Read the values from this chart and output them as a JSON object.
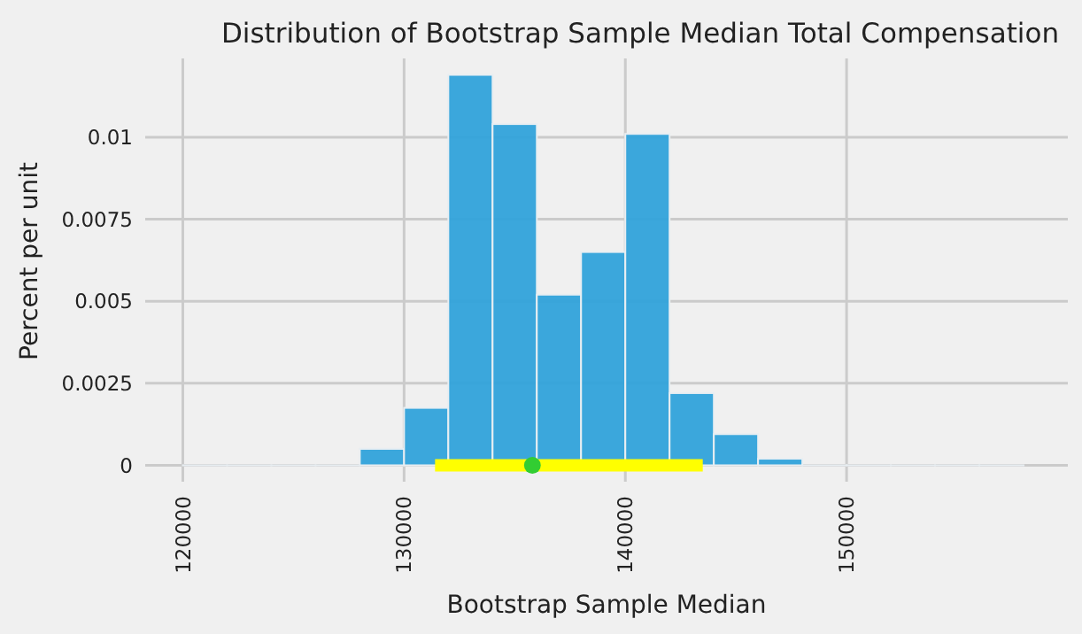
{
  "chart_data": {
    "type": "histogram",
    "title": "Distribution of Bootstrap Sample Median Total Compensation",
    "xlabel": "Bootstrap Sample Median",
    "ylabel": "Percent per unit",
    "bins": [
      120000,
      122000,
      124000,
      126000,
      128000,
      130000,
      132000,
      134000,
      136000,
      138000,
      140000,
      142000,
      144000,
      146000,
      148000,
      150000,
      152000,
      154000,
      156000,
      158000
    ],
    "values": [
      0,
      0,
      0,
      0,
      0.0005,
      0.00175,
      0.0119,
      0.0104,
      0.0052,
      0.0065,
      0.0101,
      0.0022,
      0.00095,
      0.0002,
      0,
      0,
      0,
      0,
      0
    ],
    "color": "#30a2da",
    "series": [
      {
        "type": "line",
        "x": [
          131400,
          143500
        ],
        "values": [
          0,
          0
        ],
        "color": "#ffff00"
      },
      {
        "type": "scatter",
        "x": [
          135800
        ],
        "values": [
          0
        ],
        "color": "#32cd32",
        "marker": "circle"
      }
    ],
    "xlim": [
      118300,
      160000
    ],
    "xticks": [
      120000,
      130000,
      140000,
      150000
    ],
    "ylim": [
      -0.0005,
      0.0124
    ],
    "yticks": [
      0,
      0.0025,
      0.005,
      0.0075,
      0.01
    ],
    "grid": true
  }
}
